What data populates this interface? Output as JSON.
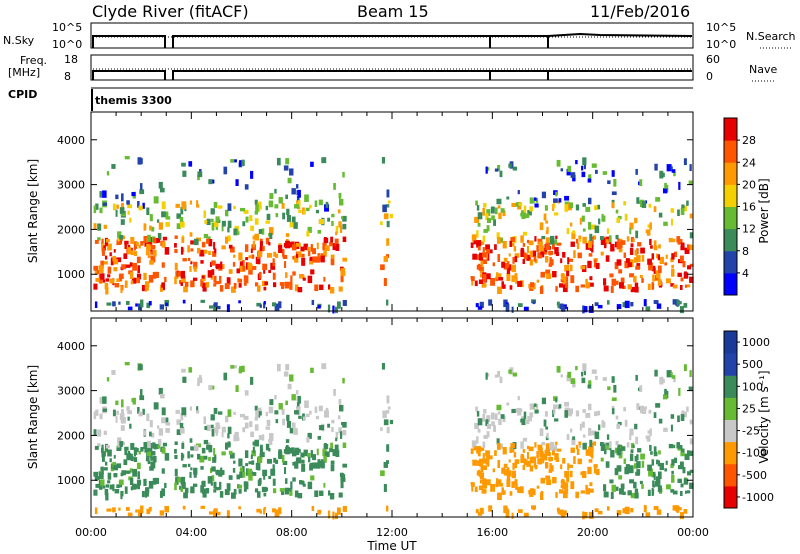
{
  "header": {
    "station": "Clyde River (fitACF)",
    "beam": "Beam 15",
    "date": "11/Feb/2016"
  },
  "strip1": {
    "left_label": "N.Sky",
    "right_label": "N.Search",
    "left_ticks": [
      "10^5",
      "10^0"
    ],
    "right_ticks": [
      "10^5",
      "10^0"
    ]
  },
  "strip2": {
    "left_label_1": "Freq.",
    "left_label_2": "[MHz]",
    "right_label": "Nave",
    "left_ticks": [
      "18",
      "8"
    ],
    "right_ticks": [
      "60",
      "0"
    ]
  },
  "cpid": {
    "label": "CPID",
    "value": "themis 3300"
  },
  "colors": {
    "power": [
      "#0000ff",
      "#2244aa",
      "#3a8a5a",
      "#66bb33",
      "#f5d000",
      "#ff9900",
      "#ff5500",
      "#e60000"
    ],
    "velocity": [
      "#e60000",
      "#ff5500",
      "#ff9900",
      "#c8c8c8",
      "#66bb33",
      "#3a8a5a",
      "#2244aa",
      "#1a3a9a"
    ]
  },
  "chart_data": [
    {
      "type": "heatmap",
      "title": "",
      "xlabel": "Time UT",
      "ylabel": "Slant Range [km]",
      "x_ticks": [
        "00:00",
        "04:00",
        "08:00",
        "12:00",
        "16:00",
        "20:00",
        "00:00"
      ],
      "x_range_hours": [
        0,
        24
      ],
      "y_ticks": [
        1000,
        2000,
        3000,
        4000
      ],
      "ylim": [
        180,
        4620
      ],
      "colorbar_label": "Power [dB]",
      "colorbar_ticks": [
        "4",
        "8",
        "12",
        "16",
        "20",
        "24",
        "28"
      ],
      "colorbar_range": [
        0,
        32
      ]
    },
    {
      "type": "heatmap",
      "title": "",
      "xlabel": "Time UT",
      "ylabel": "Slant Range [km]",
      "x_ticks": [
        "00:00",
        "04:00",
        "08:00",
        "12:00",
        "16:00",
        "20:00",
        "00:00"
      ],
      "x_range_hours": [
        0,
        24
      ],
      "y_ticks": [
        1000,
        2000,
        3000,
        4000
      ],
      "ylim": [
        180,
        4620
      ],
      "colorbar_label": "Velocity [m s⁻¹]",
      "colorbar_ticks": [
        "1000",
        "500",
        "100",
        "25",
        "-25",
        "-100",
        "-500",
        "-1000"
      ]
    }
  ]
}
